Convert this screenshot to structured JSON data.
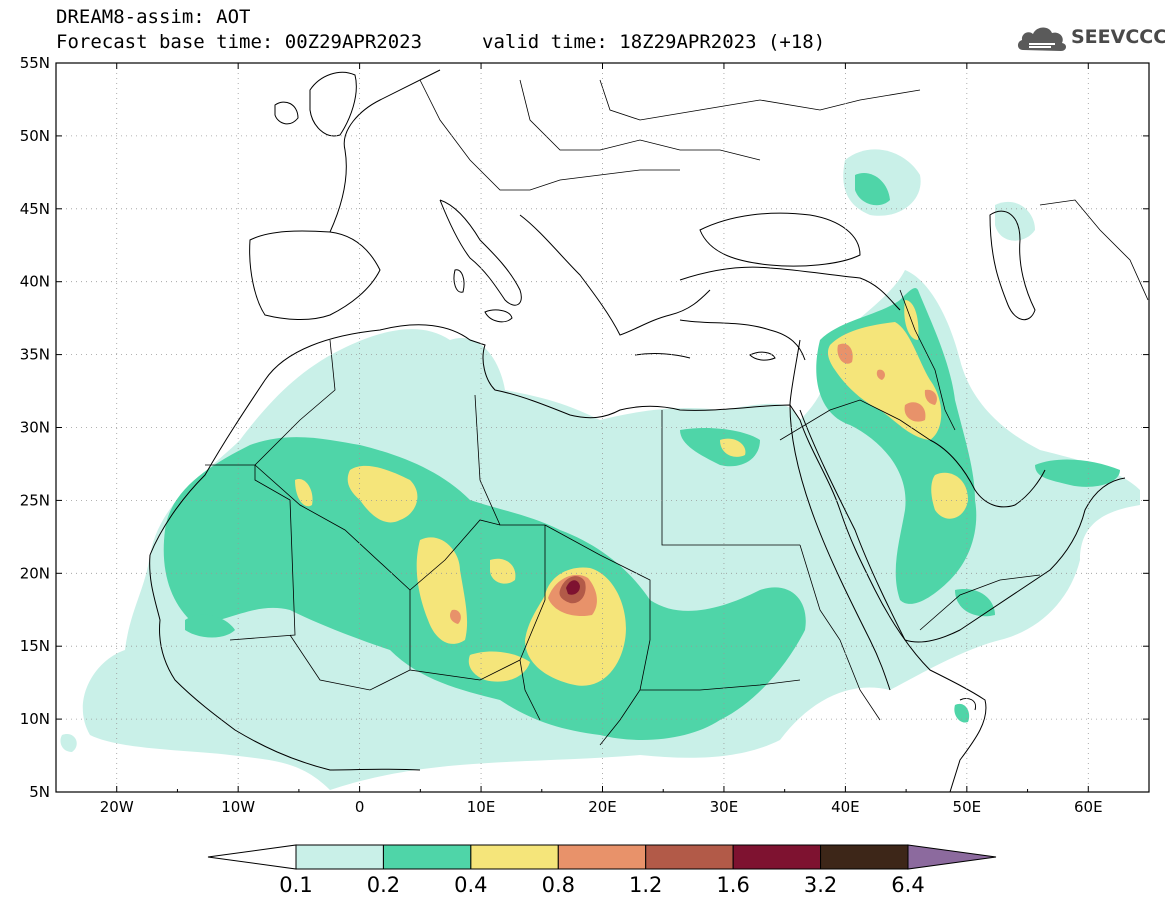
{
  "header": {
    "title": "DREAM8-assim: AOT",
    "base_time": "Forecast base time: 00Z29APR2023",
    "valid_time": "valid time: 18Z29APR2023 (+18)"
  },
  "logo": {
    "text": "SEEVCCC",
    "icon": "cloud-icon"
  },
  "map": {
    "variable": "AOT",
    "lon_range": [
      -25,
      65
    ],
    "lat_range": [
      5,
      55
    ],
    "lon_ticks": [
      "20W",
      "10W",
      "0",
      "10E",
      "20E",
      "30E",
      "40E",
      "50E",
      "60E"
    ],
    "lat_ticks": [
      "5N",
      "10N",
      "15N",
      "20N",
      "25N",
      "30N",
      "35N",
      "40N",
      "45N",
      "50N",
      "55N"
    ],
    "grid": "dotted"
  },
  "colorbar": {
    "levels": [
      "0.1",
      "0.2",
      "0.4",
      "0.8",
      "1.2",
      "1.6",
      "3.2",
      "6.4"
    ],
    "colors": [
      "#ffffff",
      "#c9f0e8",
      "#4fd5a8",
      "#f5e57a",
      "#e8926a",
      "#b25a48",
      "#7e1230",
      "#3d2618",
      "#8c6a9e"
    ]
  },
  "chart_data": {
    "type": "heatmap",
    "title": "DREAM8-assim: AOT",
    "xlabel": "",
    "ylabel": "",
    "xlim": [
      -25,
      65
    ],
    "ylim": [
      5,
      55
    ],
    "thresholds": [
      0.1,
      0.2,
      0.4,
      0.8,
      1.2,
      1.6,
      3.2,
      6.4
    ],
    "hotspots": [
      {
        "lon": 17.5,
        "lat": 19,
        "max_aot": 1.6
      },
      {
        "lon": 44,
        "lat": 34,
        "max_aot": 1.2
      },
      {
        "lon": 46.5,
        "lat": 31.5,
        "max_aot": 1.2
      },
      {
        "lon": 8,
        "lat": 16.5,
        "max_aot": 1.2
      },
      {
        "lon": 47,
        "lat": 25.5,
        "max_aot": 0.8
      },
      {
        "lon": 2,
        "lat": 25,
        "max_aot": 0.8
      },
      {
        "lon": 31,
        "lat": 28.5,
        "max_aot": 0.8
      }
    ]
  }
}
